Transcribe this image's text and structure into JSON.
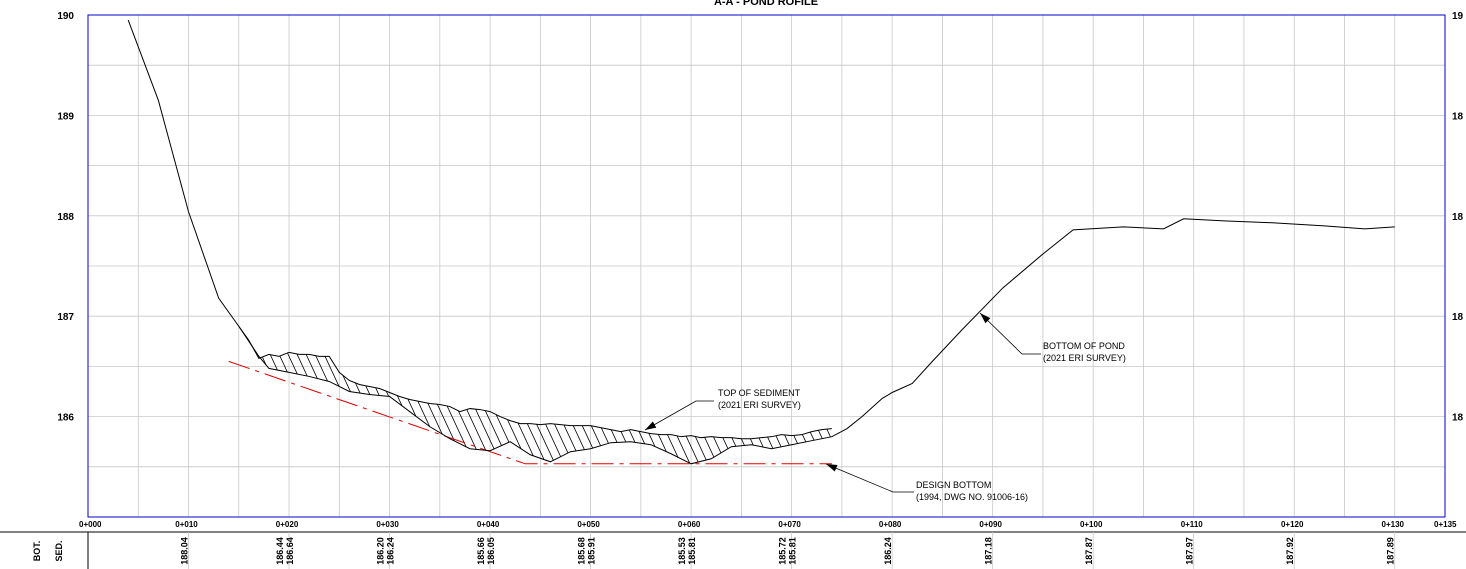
{
  "title": "A-A - POND ROFILE",
  "y_axis": {
    "left_ticks": [
      "190",
      "189",
      "188",
      "187",
      "186"
    ],
    "right_ticks": [
      "19",
      "18",
      "18",
      "18",
      "18"
    ]
  },
  "stations": [
    "0+000",
    "0+010",
    "0+020",
    "0+030",
    "0+040",
    "0+050",
    "0+060",
    "0+070",
    "0+080",
    "0+090",
    "0+100",
    "0+110",
    "0+120",
    "0+130",
    "0+135"
  ],
  "table": {
    "row_labels": [
      "BOT.",
      "SED."
    ],
    "columns": [
      {
        "station": 10,
        "bot": "188.04",
        "sed": ""
      },
      {
        "station": 20,
        "bot": "186.44",
        "sed": "186.64"
      },
      {
        "station": 30,
        "bot": "186.20",
        "sed": "186.24"
      },
      {
        "station": 40,
        "bot": "185.66",
        "sed": "186.05"
      },
      {
        "station": 50,
        "bot": "185.68",
        "sed": "185.91"
      },
      {
        "station": 60,
        "bot": "185.53",
        "sed": "185.81"
      },
      {
        "station": 70,
        "bot": "185.72",
        "sed": "185.81"
      },
      {
        "station": 80,
        "bot": "186.24",
        "sed": ""
      },
      {
        "station": 90,
        "bot": "187.18",
        "sed": ""
      },
      {
        "station": 100,
        "bot": "187.87",
        "sed": ""
      },
      {
        "station": 110,
        "bot": "187.97",
        "sed": ""
      },
      {
        "station": 120,
        "bot": "187.92",
        "sed": ""
      },
      {
        "station": 130,
        "bot": "187.89",
        "sed": ""
      }
    ]
  },
  "annotations": {
    "top_of_sediment": [
      "TOP OF SEDIMENT",
      "(2021 ERI SURVEY)"
    ],
    "bottom_of_pond": [
      "BOTTOM OF POND",
      "(2021 ERI SURVEY)"
    ],
    "design_bottom": [
      "DESIGN BOTTOM",
      "(1994, DWG NO. 91006-16)"
    ]
  },
  "colors": {
    "frame": "#0000cc",
    "grid": "#c8c8c8",
    "profile": "#000000",
    "design": "#e00000"
  },
  "chart_data": {
    "type": "line",
    "xlabel": "",
    "ylabel": "",
    "xlim": [
      0,
      135
    ],
    "ylim": [
      185,
      190
    ],
    "series": [
      {
        "key": "bottom",
        "x": [
          4,
          7,
          10,
          13,
          15,
          17,
          18,
          20,
          22,
          24,
          26,
          28,
          30,
          32,
          34,
          36,
          38,
          40,
          42,
          44,
          46,
          48,
          50,
          52,
          54,
          56,
          58,
          60,
          62,
          64,
          66,
          68,
          70,
          72,
          74,
          75.5,
          77,
          79,
          80,
          82,
          84,
          87,
          91,
          95,
          98,
          103,
          107,
          109,
          113,
          118,
          123,
          127,
          130
        ],
        "y": [
          189.95,
          189.15,
          188.04,
          187.18,
          186.9,
          186.6,
          186.48,
          186.44,
          186.4,
          186.35,
          186.25,
          186.22,
          186.2,
          186.05,
          185.9,
          185.78,
          185.68,
          185.66,
          185.75,
          185.62,
          185.55,
          185.65,
          185.68,
          185.74,
          185.75,
          185.72,
          185.63,
          185.53,
          185.58,
          185.7,
          185.72,
          185.68,
          185.72,
          185.76,
          185.8,
          185.88,
          186.0,
          186.18,
          186.24,
          186.33,
          186.55,
          186.87,
          187.28,
          187.62,
          187.86,
          187.89,
          187.87,
          187.97,
          187.95,
          187.93,
          187.9,
          187.87,
          187.89
        ]
      },
      {
        "key": "sediment",
        "x": [
          15,
          16,
          17,
          18,
          19,
          20,
          21,
          22,
          23,
          24,
          25,
          26,
          27,
          28,
          29,
          30,
          31,
          32,
          33,
          34,
          35,
          36,
          37,
          38,
          39,
          40,
          41,
          42,
          43,
          44,
          45,
          46,
          47,
          48,
          49,
          50,
          51,
          52,
          53,
          54,
          55,
          56,
          57,
          58,
          59,
          60,
          61,
          62,
          63,
          64,
          65,
          66,
          67,
          68,
          69,
          70,
          71,
          72,
          73,
          74
        ],
        "y": [
          186.9,
          186.76,
          186.58,
          186.62,
          186.6,
          186.64,
          186.62,
          186.62,
          186.6,
          186.6,
          186.44,
          186.36,
          186.32,
          186.3,
          186.28,
          186.24,
          186.2,
          186.17,
          186.15,
          186.13,
          186.12,
          186.1,
          186.05,
          186.08,
          186.07,
          186.05,
          186.0,
          185.96,
          185.93,
          185.93,
          185.92,
          185.93,
          185.92,
          185.91,
          185.91,
          185.91,
          185.89,
          185.87,
          185.85,
          185.87,
          185.85,
          185.83,
          185.82,
          185.82,
          185.8,
          185.81,
          185.79,
          185.8,
          185.79,
          185.79,
          185.78,
          185.78,
          185.79,
          185.8,
          185.82,
          185.81,
          185.82,
          185.85,
          185.87,
          185.88
        ]
      },
      {
        "key": "design",
        "x": [
          14,
          43.5,
          74
        ],
        "y": [
          186.55,
          185.53,
          185.53
        ]
      }
    ]
  }
}
